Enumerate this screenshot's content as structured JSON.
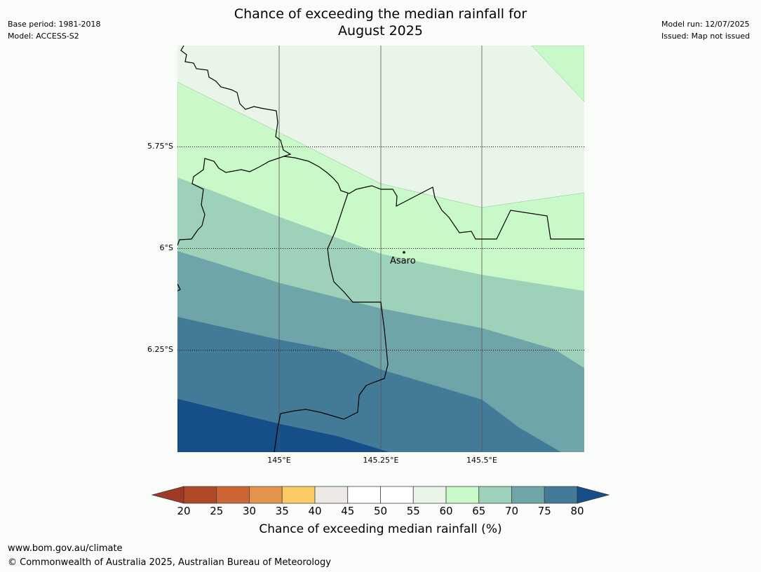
{
  "header": {
    "title_line1": "Chance of exceeding the median rainfall for",
    "title_line2": "August 2025",
    "base_period": "Base period: 1981-2018",
    "model": "Model: ACCESS-S2",
    "model_run": "Model run: 12/07/2025",
    "issued": "Issued: Map not issued"
  },
  "map": {
    "lat_labels": [
      "5.75°S",
      "6°S",
      "6.25°S"
    ],
    "lon_labels": [
      "145°E",
      "145.25°E",
      "145.5°E"
    ],
    "place": {
      "name": "Asaro"
    },
    "colors": {
      "c55_60": "#eaf5ea",
      "c60_65": "#caf9c9",
      "c65_70": "#9dd1b9",
      "c70_75": "#6fa4a8",
      "c75_80": "#427a98",
      "c80_plus": "#154e88"
    }
  },
  "colorbar": {
    "label": "Chance of exceeding median rainfall (%)",
    "ticks": [
      "20",
      "25",
      "30",
      "35",
      "40",
      "45",
      "50",
      "55",
      "60",
      "65",
      "70",
      "75",
      "80"
    ],
    "colors": [
      "#b04a26",
      "#cd6534",
      "#e4934a",
      "#fdcb66",
      "#ede9e5",
      "#ffffff",
      "#ffffff",
      "#eaf5ea",
      "#caf9c9",
      "#9dd1b9",
      "#6fa4a8",
      "#427a98"
    ],
    "under_color": "#9e3a25",
    "over_color": "#154e88"
  },
  "footer": {
    "url": "www.bom.gov.au/climate",
    "copyright": "© Commonwealth of Australia 2025, Australian Bureau of Meteorology"
  }
}
